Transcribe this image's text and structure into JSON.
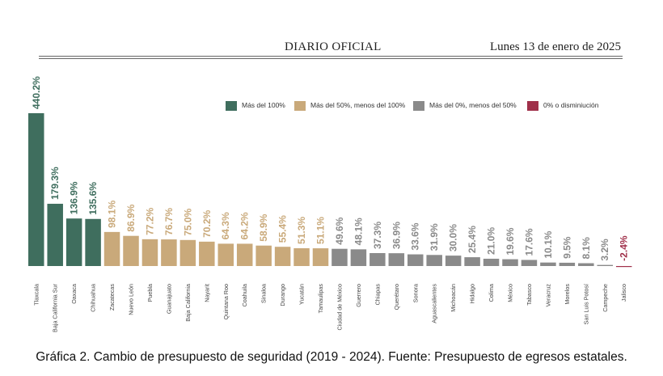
{
  "header": {
    "left": "DIARIO OFICIAL",
    "right": "Lunes 13 de enero de 2025"
  },
  "caption": "Gráfica 2. Cambio de presupuesto de seguridad (2019 - 2024). Fuente: Presupuesto de egresos estatales.",
  "legend": [
    {
      "label": "Más del 100%",
      "color": "#3f6e5e"
    },
    {
      "label": "Más del 50%, menos del 100%",
      "color": "#c9a97a"
    },
    {
      "label": "Más del 0%, menos del 50%",
      "color": "#8a8a8a"
    },
    {
      "label": "0% o disminiución",
      "color": "#a0304a"
    }
  ],
  "chart_data": {
    "type": "bar",
    "title": "",
    "xlabel": "",
    "ylabel": "",
    "ylim": [
      -5,
      445
    ],
    "grid": false,
    "legend_position": "top-right",
    "categories": [
      "Tlaxcala",
      "Baja California Sur",
      "Oaxaca",
      "Chihuahua",
      "Zacatecas",
      "Nuevo León",
      "Puebla",
      "Guanajuato",
      "Baja California",
      "Nayarit",
      "Quintana Roo",
      "Coahuila",
      "Sinaloa",
      "Durango",
      "Yucatán",
      "Tamaulipas",
      "Ciudad de México",
      "Guerrero",
      "Chiapas",
      "Querétaro",
      "Sonora",
      "Aguascalientes",
      "Michoacán",
      "Hidalgo",
      "Colima",
      "México",
      "Tabasco",
      "Veracruz",
      "Morelos",
      "San Luis Potosí",
      "Campeche",
      "Jalisco"
    ],
    "values": [
      440.2,
      179.3,
      136.9,
      135.6,
      98.1,
      86.9,
      77.2,
      76.7,
      75.0,
      70.2,
      64.3,
      64.2,
      58.9,
      55.4,
      51.3,
      51.1,
      49.6,
      48.1,
      37.3,
      36.9,
      33.6,
      31.9,
      30.0,
      25.4,
      21.0,
      19.6,
      17.6,
      10.1,
      9.5,
      8.1,
      3.2,
      -2.4
    ],
    "value_labels": [
      "440.2%",
      "179.3%",
      "136.9%",
      "135.6%",
      "98.1%",
      "86.9%",
      "77.2%",
      "76.7%",
      "75.0%",
      "70.2%",
      "64.3%",
      "64.2%",
      "58.9%",
      "55.4%",
      "51.3%",
      "51.1%",
      "49.6%",
      "48.1%",
      "37.3%",
      "36.9%",
      "33.6%",
      "31.9%",
      "30.0%",
      "25.4%",
      "21.0%",
      "19.6%",
      "17.6%",
      "10.1%",
      "9.5%",
      "8.1%",
      "3.2%",
      "-2.4%"
    ],
    "colors": {
      "gt100": "#3f6e5e",
      "gt50": "#c9a97a",
      "gt0": "#8a8a8a",
      "le0": "#a0304a"
    }
  }
}
